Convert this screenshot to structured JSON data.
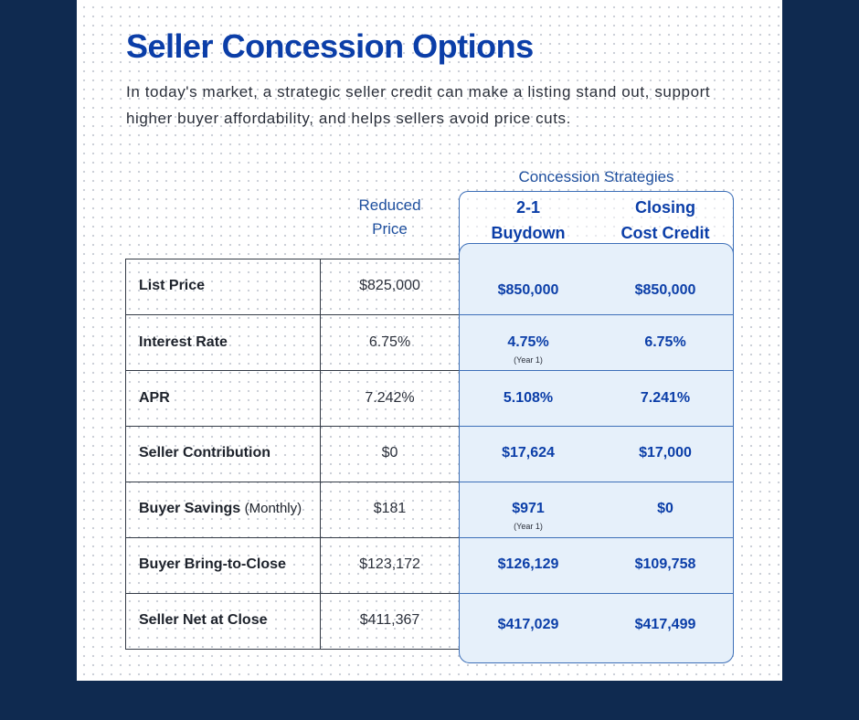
{
  "title": "Seller Concession Options",
  "intro": "In today's market, a strategic seller credit can make a listing stand out, support higher buyer affordability, and helps sellers avoid price cuts.",
  "headers": {
    "concession_strategies": "Concession Strategies",
    "reduced_price": [
      "Reduced",
      "Price"
    ],
    "buydown": [
      "2-1",
      "Buydown"
    ],
    "closing_cost": [
      "Closing",
      "Cost Credit"
    ]
  },
  "rows": [
    {
      "label": "List Price",
      "label_sub": "",
      "reduced": "$825,000",
      "buydown": "$850,000",
      "buydown_note": "",
      "closing": "$850,000"
    },
    {
      "label": "Interest Rate",
      "label_sub": "",
      "reduced": "6.75%",
      "buydown": "4.75%",
      "buydown_note": "(Year 1)",
      "closing": "6.75%"
    },
    {
      "label": "APR",
      "label_sub": "",
      "reduced": "7.242%",
      "buydown": "5.108%",
      "buydown_note": "",
      "closing": "7.241%"
    },
    {
      "label": "Seller Contribution",
      "label_sub": "",
      "reduced": "$0",
      "buydown": "$17,624",
      "buydown_note": "",
      "closing": "$17,000"
    },
    {
      "label": "Buyer Savings",
      "label_sub": "(Monthly)",
      "reduced": "$181",
      "buydown": "$971",
      "buydown_note": "(Year 1)",
      "closing": "$0"
    },
    {
      "label": "Buyer Bring-to-Close",
      "label_sub": "",
      "reduced": "$123,172",
      "buydown": "$126,129",
      "buydown_note": "",
      "closing": "$109,758"
    },
    {
      "label": "Seller Net at Close",
      "label_sub": "",
      "reduced": "$411,367",
      "buydown": "$417,029",
      "buydown_note": "",
      "closing": "$417,499"
    }
  ],
  "colors": {
    "page_background": "#0f2a50",
    "title": "#0b3ea8",
    "strategy_fill": "#e6f0fa",
    "strategy_border": "#3d6fb8"
  }
}
